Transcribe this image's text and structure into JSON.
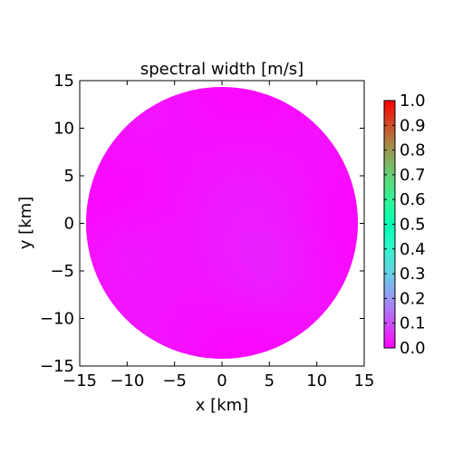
{
  "chart_data": {
    "type": "heatmap",
    "title": "spectral width [m/s]",
    "xlabel": "x [km]",
    "ylabel": "y [km]",
    "xlim": [
      -15,
      15
    ],
    "ylim": [
      -15,
      15
    ],
    "xticks": [
      "−15",
      "−10",
      "−5",
      "0",
      "5",
      "10",
      "15"
    ],
    "yticks": [
      "−15",
      "−10",
      "−5",
      "0",
      "5",
      "10",
      "15"
    ],
    "xtick_values": [
      -15,
      -10,
      -5,
      0,
      5,
      10,
      15
    ],
    "ytick_values": [
      -15,
      -10,
      -5,
      0,
      5,
      10,
      15
    ],
    "domain_radius": 15,
    "colormap": "rainbow",
    "colorbar": {
      "range": [
        0.0,
        1.0
      ],
      "ticks": [
        "0.0",
        "0.1",
        "0.2",
        "0.3",
        "0.4",
        "0.5",
        "0.6",
        "0.7",
        "0.8",
        "0.9",
        "1.0"
      ],
      "tick_values": [
        0.0,
        0.1,
        0.2,
        0.3,
        0.4,
        0.5,
        0.6,
        0.7,
        0.8,
        0.9,
        1.0
      ]
    },
    "field_value_range": [
      0.0,
      0.07
    ],
    "grid": false
  }
}
